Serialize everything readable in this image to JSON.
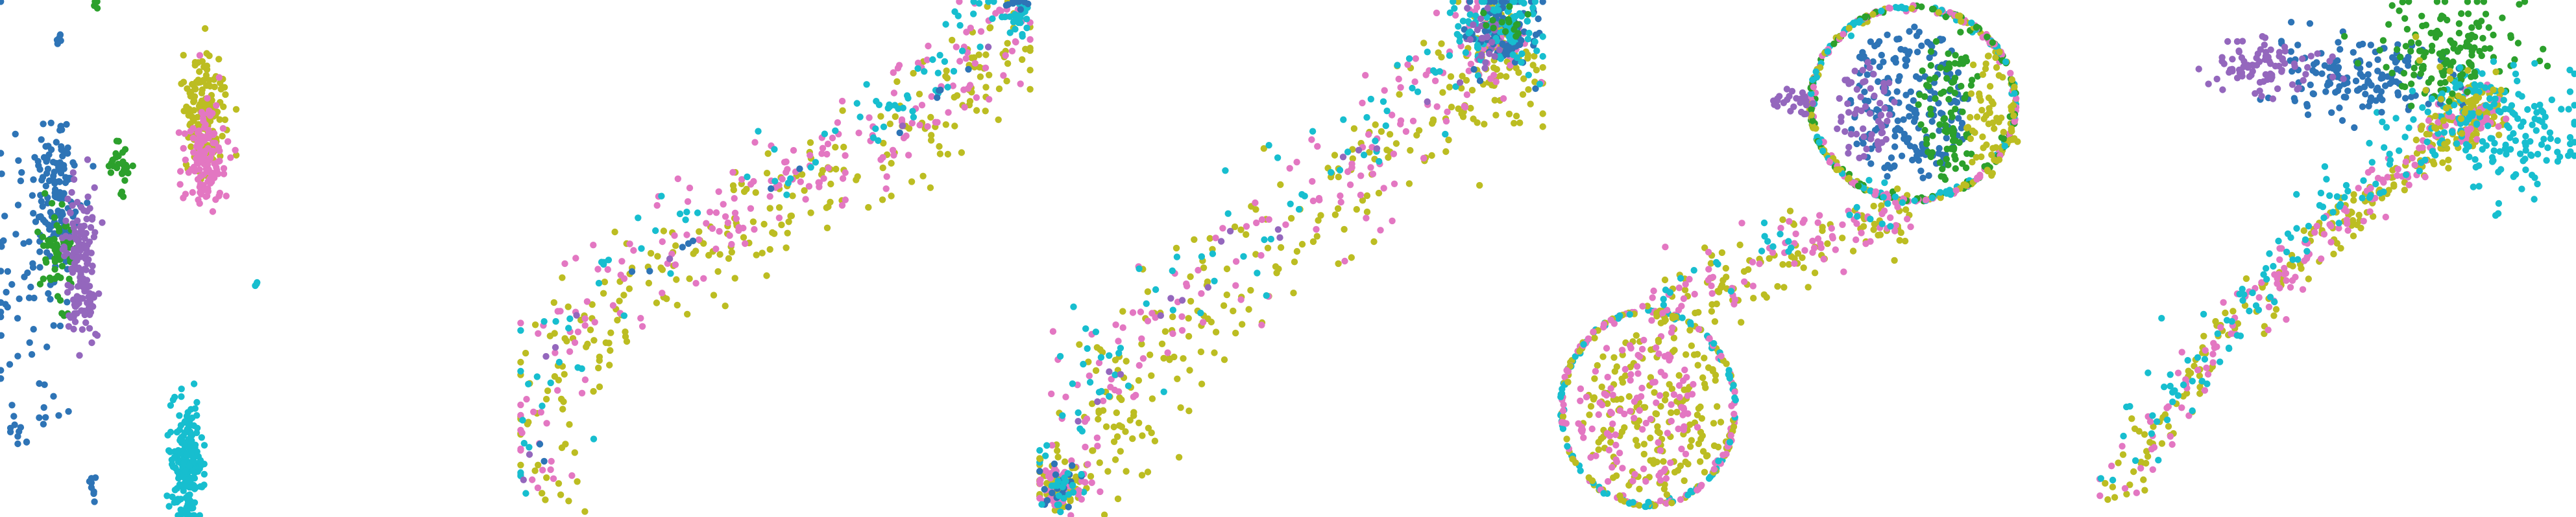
{
  "figure": {
    "background": "#ffffff"
  },
  "palette": {
    "blue": "#2e74b6",
    "green": "#2ca02c",
    "purple": "#9467bd",
    "olive": "#bcbd22",
    "pink": "#e377c2",
    "cyan": "#17becf"
  },
  "chart_data": [
    {
      "type": "scatter",
      "title": "",
      "xlabel": "",
      "ylabel": "",
      "grid": false,
      "axes": false,
      "series": [
        {
          "color": "#2e74b6",
          "clusters": [
            {
              "x": 0.22,
              "y": 0.38,
              "sx": 0.05,
              "sy": 0.08,
              "n": 120
            },
            {
              "x": 0.12,
              "y": 0.55,
              "sx": 0.1,
              "sy": 0.18,
              "n": 70
            },
            {
              "x": 0.07,
              "y": 0.83,
              "sx": 0.02,
              "sy": 0.02,
              "n": 10
            },
            {
              "x": 0.36,
              "y": 0.94,
              "sx": 0.01,
              "sy": 0.02,
              "n": 8
            },
            {
              "x": 0.22,
              "y": 0.07,
              "sx": 0.01,
              "sy": 0.01,
              "n": 6
            }
          ]
        },
        {
          "color": "#2ca02c",
          "clusters": [
            {
              "x": 0.22,
              "y": 0.49,
              "sx": 0.03,
              "sy": 0.05,
              "n": 60
            },
            {
              "x": 0.47,
              "y": 0.32,
              "sx": 0.02,
              "sy": 0.03,
              "n": 30
            },
            {
              "x": 0.37,
              "y": 0.01,
              "sx": 0.005,
              "sy": 0.005,
              "n": 4
            }
          ]
        },
        {
          "color": "#9467bd",
          "clusters": [
            {
              "x": 0.31,
              "y": 0.51,
              "sx": 0.03,
              "sy": 0.07,
              "n": 150
            }
          ]
        },
        {
          "color": "#bcbd22",
          "clusters": [
            {
              "x": 0.79,
              "y": 0.22,
              "sx": 0.04,
              "sy": 0.06,
              "n": 160
            }
          ]
        },
        {
          "color": "#e377c2",
          "clusters": [
            {
              "x": 0.79,
              "y": 0.3,
              "sx": 0.04,
              "sy": 0.05,
              "n": 120
            }
          ]
        },
        {
          "color": "#17becf",
          "clusters": [
            {
              "x": 0.72,
              "y": 0.9,
              "sx": 0.03,
              "sy": 0.06,
              "n": 200
            },
            {
              "x": 0.99,
              "y": 0.55,
              "sx": 0.004,
              "sy": 0.004,
              "n": 3
            }
          ]
        }
      ]
    },
    {
      "type": "scatter",
      "title": "",
      "xlabel": "",
      "ylabel": "",
      "grid": false,
      "axes": false,
      "curve": [
        [
          0.02,
          0.98
        ],
        [
          0.08,
          0.62
        ],
        [
          0.4,
          0.42
        ],
        [
          0.75,
          0.25
        ],
        [
          0.98,
          0.02
        ]
      ],
      "series": [
        {
          "color": "#bcbd22",
          "n": 260,
          "spread": 0.11,
          "side": 0.6
        },
        {
          "color": "#e377c2",
          "n": 200,
          "spread": 0.09,
          "side": -0.2
        },
        {
          "color": "#17becf",
          "n": 90,
          "spread": 0.07,
          "side": -1.0
        },
        {
          "color": "#2e74b6",
          "n": 14,
          "spread": 0.02,
          "side": 0
        },
        {
          "color": "#9467bd",
          "n": 8,
          "spread": 0.02,
          "side": 0
        }
      ],
      "clusters": [
        {
          "color": "#17becf",
          "x": 0.98,
          "y": 0.02,
          "sx": 0.01,
          "sy": 0.02,
          "n": 25
        },
        {
          "color": "#2e74b6",
          "x": 0.97,
          "y": 0.01,
          "sx": 0.015,
          "sy": 0.005,
          "n": 10
        }
      ]
    },
    {
      "type": "scatter",
      "title": "",
      "xlabel": "",
      "ylabel": "",
      "grid": false,
      "axes": false,
      "curve": [
        [
          0.04,
          0.95
        ],
        [
          0.2,
          0.65
        ],
        [
          0.55,
          0.4
        ],
        [
          0.85,
          0.12
        ],
        [
          0.95,
          0.05
        ]
      ],
      "series": [
        {
          "color": "#bcbd22",
          "n": 300,
          "spread": 0.12,
          "side": 0.5
        },
        {
          "color": "#e377c2",
          "n": 170,
          "spread": 0.1,
          "side": -0.1
        },
        {
          "color": "#17becf",
          "n": 110,
          "spread": 0.09,
          "side": -0.8
        },
        {
          "color": "#9467bd",
          "n": 25,
          "spread": 0.05,
          "side": -0.4
        }
      ],
      "clusters": [
        {
          "color": "#2e74b6",
          "x": 0.92,
          "y": 0.06,
          "sx": 0.035,
          "sy": 0.04,
          "n": 90
        },
        {
          "color": "#17becf",
          "x": 0.93,
          "y": 0.06,
          "sx": 0.04,
          "sy": 0.04,
          "n": 60
        },
        {
          "color": "#9467bd",
          "x": 0.89,
          "y": 0.06,
          "sx": 0.02,
          "sy": 0.03,
          "n": 20
        },
        {
          "color": "#2ca02c",
          "x": 0.92,
          "y": 0.04,
          "sx": 0.02,
          "sy": 0.02,
          "n": 15
        },
        {
          "color": "#bcbd22",
          "x": 0.04,
          "y": 0.94,
          "sx": 0.025,
          "sy": 0.03,
          "n": 60
        },
        {
          "color": "#e377c2",
          "x": 0.04,
          "y": 0.94,
          "sx": 0.025,
          "sy": 0.03,
          "n": 40
        },
        {
          "color": "#2e74b6",
          "x": 0.04,
          "y": 0.94,
          "sx": 0.02,
          "sy": 0.02,
          "n": 20
        },
        {
          "color": "#17becf",
          "x": 0.05,
          "y": 0.95,
          "sx": 0.02,
          "sy": 0.02,
          "n": 20
        }
      ]
    },
    {
      "type": "scatter",
      "title": "",
      "xlabel": "",
      "ylabel": "",
      "grid": false,
      "axes": false,
      "rings": [
        {
          "cx": 0.71,
          "cy": 0.2,
          "rx": 0.2,
          "ry": 0.19,
          "colors": [
            "#17becf",
            "#bcbd22",
            "#e377c2",
            "#2ca02c"
          ],
          "n": 420
        },
        {
          "cx": 0.2,
          "cy": 0.79,
          "rx": 0.17,
          "ry": 0.19,
          "colors": [
            "#17becf",
            "#bcbd22",
            "#e377c2"
          ],
          "n": 260
        }
      ],
      "fills": [
        {
          "cx": 0.7,
          "cy": 0.2,
          "rx": 0.12,
          "ry": 0.15,
          "color": "#2e74b6",
          "n": 200
        },
        {
          "cx": 0.78,
          "cy": 0.2,
          "rx": 0.06,
          "ry": 0.15,
          "color": "#2ca02c",
          "n": 90
        },
        {
          "cx": 0.62,
          "cy": 0.22,
          "rx": 0.06,
          "ry": 0.1,
          "color": "#9467bd",
          "n": 60
        },
        {
          "cx": 0.86,
          "cy": 0.22,
          "rx": 0.06,
          "ry": 0.12,
          "color": "#bcbd22",
          "n": 60
        },
        {
          "cx": 0.21,
          "cy": 0.8,
          "rx": 0.14,
          "ry": 0.16,
          "color": "#bcbd22",
          "n": 170
        },
        {
          "cx": 0.18,
          "cy": 0.8,
          "rx": 0.12,
          "ry": 0.15,
          "color": "#e377c2",
          "n": 110
        },
        {
          "cx": 0.48,
          "cy": 0.2,
          "rx": 0.04,
          "ry": 0.03,
          "color": "#9467bd",
          "n": 25
        }
      ],
      "curve": [
        [
          0.2,
          0.62
        ],
        [
          0.35,
          0.53
        ],
        [
          0.55,
          0.47
        ],
        [
          0.7,
          0.4
        ]
      ],
      "series": [
        {
          "color": "#bcbd22",
          "n": 110,
          "spread": 0.06,
          "side": 0.3
        },
        {
          "color": "#e377c2",
          "n": 90,
          "spread": 0.06,
          "side": -0.2
        },
        {
          "color": "#17becf",
          "n": 30,
          "spread": 0.05,
          "side": -0.8
        }
      ]
    },
    {
      "type": "scatter",
      "title": "",
      "xlabel": "",
      "ylabel": "",
      "grid": false,
      "axes": false,
      "curve": [
        [
          0.08,
          0.97
        ],
        [
          0.3,
          0.65
        ],
        [
          0.55,
          0.42
        ],
        [
          0.75,
          0.25
        ],
        [
          0.85,
          0.18
        ]
      ],
      "series": [
        {
          "color": "#bcbd22",
          "n": 260,
          "spread": 0.045,
          "side": 0.3
        },
        {
          "color": "#e377c2",
          "n": 170,
          "spread": 0.05,
          "side": 0
        },
        {
          "color": "#17becf",
          "n": 150,
          "spread": 0.06,
          "side": -0.7
        }
      ],
      "clusters": [
        {
          "color": "#2e74b6",
          "x": 0.58,
          "y": 0.15,
          "sx": 0.08,
          "sy": 0.04,
          "n": 150
        },
        {
          "color": "#2ca02c",
          "x": 0.75,
          "y": 0.1,
          "sx": 0.07,
          "sy": 0.05,
          "n": 140
        },
        {
          "color": "#9467bd",
          "x": 0.4,
          "y": 0.13,
          "sx": 0.06,
          "sy": 0.03,
          "n": 90
        },
        {
          "color": "#17becf",
          "x": 0.87,
          "y": 0.25,
          "sx": 0.08,
          "sy": 0.06,
          "n": 140
        },
        {
          "color": "#bcbd22",
          "x": 0.78,
          "y": 0.2,
          "sx": 0.05,
          "sy": 0.05,
          "n": 30
        }
      ]
    }
  ]
}
